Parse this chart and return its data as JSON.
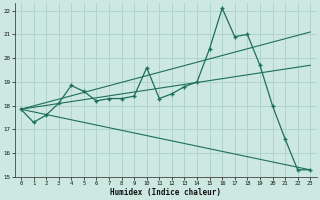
{
  "xlabel": "Humidex (Indice chaleur)",
  "xlim": [
    -0.5,
    23.5
  ],
  "ylim": [
    15,
    22.3
  ],
  "xticks": [
    0,
    1,
    2,
    3,
    4,
    5,
    6,
    7,
    8,
    9,
    10,
    11,
    12,
    13,
    14,
    15,
    16,
    17,
    18,
    19,
    20,
    21,
    22,
    23
  ],
  "yticks": [
    15,
    16,
    17,
    18,
    19,
    20,
    21,
    22
  ],
  "bg_color": "#cce8e0",
  "grid_color": "#b0d4cc",
  "line_color": "#1e6e5e",
  "main_x": [
    0,
    1,
    2,
    3,
    4,
    5,
    6,
    7,
    8,
    9,
    10,
    11,
    12,
    13,
    14,
    15,
    16,
    17,
    18,
    19,
    20,
    21,
    22,
    23
  ],
  "main_y": [
    17.85,
    17.3,
    17.6,
    18.1,
    18.85,
    18.6,
    18.2,
    18.3,
    18.3,
    18.4,
    19.6,
    18.3,
    18.5,
    18.8,
    19.0,
    20.4,
    22.1,
    20.9,
    21.0,
    19.7,
    18.0,
    16.6,
    15.3,
    15.3
  ],
  "line1_x": [
    0,
    23
  ],
  "line1_y": [
    17.85,
    21.1
  ],
  "line2_x": [
    0,
    23
  ],
  "line2_y": [
    17.85,
    15.3
  ],
  "line3_x": [
    0,
    23
  ],
  "line3_y": [
    17.85,
    19.7
  ]
}
